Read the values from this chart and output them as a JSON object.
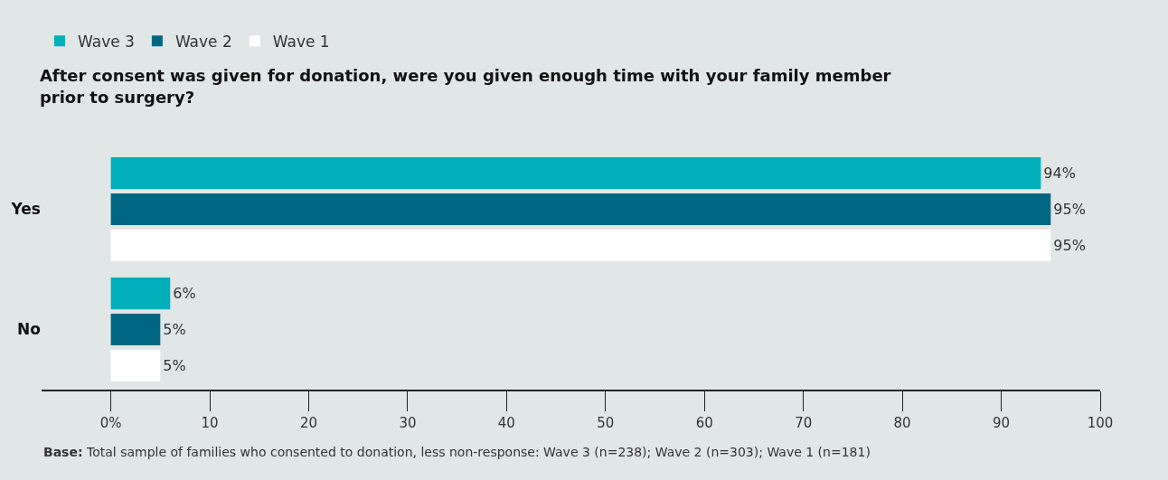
{
  "chart_data": {
    "type": "bar",
    "orientation": "horizontal",
    "title": "After consent was given for donation, were you given enough time with your family member\nprior to surgery?",
    "categories": [
      "Yes",
      "No"
    ],
    "series": [
      {
        "name": "Wave 3",
        "color": "#00afba",
        "values": [
          94,
          6
        ],
        "value_labels": [
          "94%",
          "6%"
        ]
      },
      {
        "name": "Wave 2",
        "color": "#006782",
        "values": [
          95,
          5
        ],
        "value_labels": [
          "95%",
          "5%"
        ]
      },
      {
        "name": "Wave 1",
        "color": "#ffffff",
        "values": [
          95,
          5
        ],
        "value_labels": [
          "95%",
          "5%"
        ]
      }
    ],
    "xlim": [
      -7,
      100
    ],
    "xticks": [
      {
        "value": 0,
        "label": "0%"
      },
      10,
      20,
      30,
      40,
      50,
      60,
      70,
      80,
      90,
      100
    ],
    "grid": false,
    "legend": "top left",
    "annotations": [
      "Base: Total sample of families who consented to donation, less non-response: Wave 3 (n=238); Wave 2 (n=303); Wave 1 (n=181)"
    ]
  }
}
